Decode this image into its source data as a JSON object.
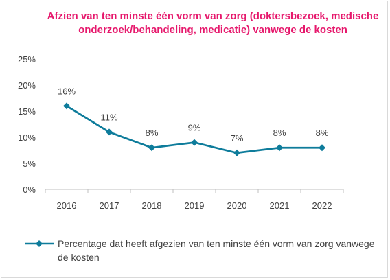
{
  "chart_data": {
    "type": "line",
    "title": "Afzien van ten minste één vorm van zorg (doktersbezoek, medische onderzoek/behandeling, medicatie) vanwege de kosten",
    "categories": [
      "2016",
      "2017",
      "2018",
      "2019",
      "2020",
      "2021",
      "2022"
    ],
    "series": [
      {
        "name": "Percentage dat heeft afgezien van ten minste één vorm van zorg vanwege de kosten",
        "values": [
          16,
          11,
          8,
          9,
          7,
          8,
          8
        ],
        "data_labels": [
          "16%",
          "11%",
          "8%",
          "9%",
          "7%",
          "8%",
          "8%"
        ],
        "color": "#0e7c9b",
        "marker": "diamond"
      }
    ],
    "y_ticks": [
      "0%",
      "5%",
      "10%",
      "15%",
      "20%",
      "25%"
    ],
    "ylim": [
      0,
      25
    ],
    "grid": false,
    "legend_position": "bottom",
    "colors": {
      "title": "#e6186c",
      "axis": "#bfbfbf",
      "text": "#404040"
    }
  }
}
